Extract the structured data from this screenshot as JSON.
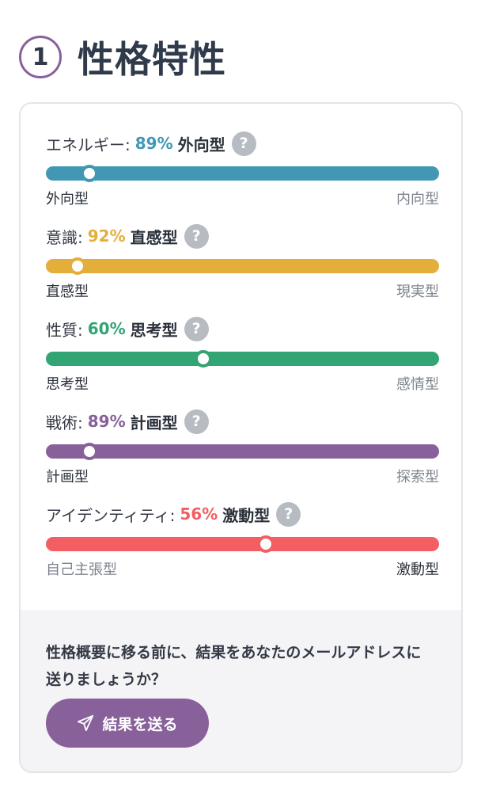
{
  "header": {
    "step_number": "1",
    "title": "性格特性"
  },
  "traits": [
    {
      "name": "エネルギー:",
      "percent": "89%",
      "type": "外向型",
      "position": 0.11,
      "left_label": "外向型",
      "right_label": "内向型",
      "color": "#4298b4"
    },
    {
      "name": "意識:",
      "percent": "92%",
      "type": "直感型",
      "position": 0.08,
      "left_label": "直感型",
      "right_label": "現実型",
      "color": "#e4ae3a"
    },
    {
      "name": "性質:",
      "percent": "60%",
      "type": "思考型",
      "position": 0.4,
      "left_label": "思考型",
      "right_label": "感情型",
      "color": "#33a474"
    },
    {
      "name": "戦術:",
      "percent": "89%",
      "type": "計画型",
      "position": 0.11,
      "left_label": "計画型",
      "right_label": "探索型",
      "color": "#88619a"
    },
    {
      "name": "アイデンティティ:",
      "percent": "56%",
      "type": "激動型",
      "position": 0.56,
      "left_label": "自己主張型",
      "right_label": "激動型",
      "color": "#f25e62"
    }
  ],
  "footer": {
    "prompt": "性格概要に移る前に、結果をあなたのメールアドレスに送りましょうか？",
    "send_label": "結果を送る"
  },
  "icons": {
    "help": "question-mark",
    "send": "paper-plane"
  }
}
